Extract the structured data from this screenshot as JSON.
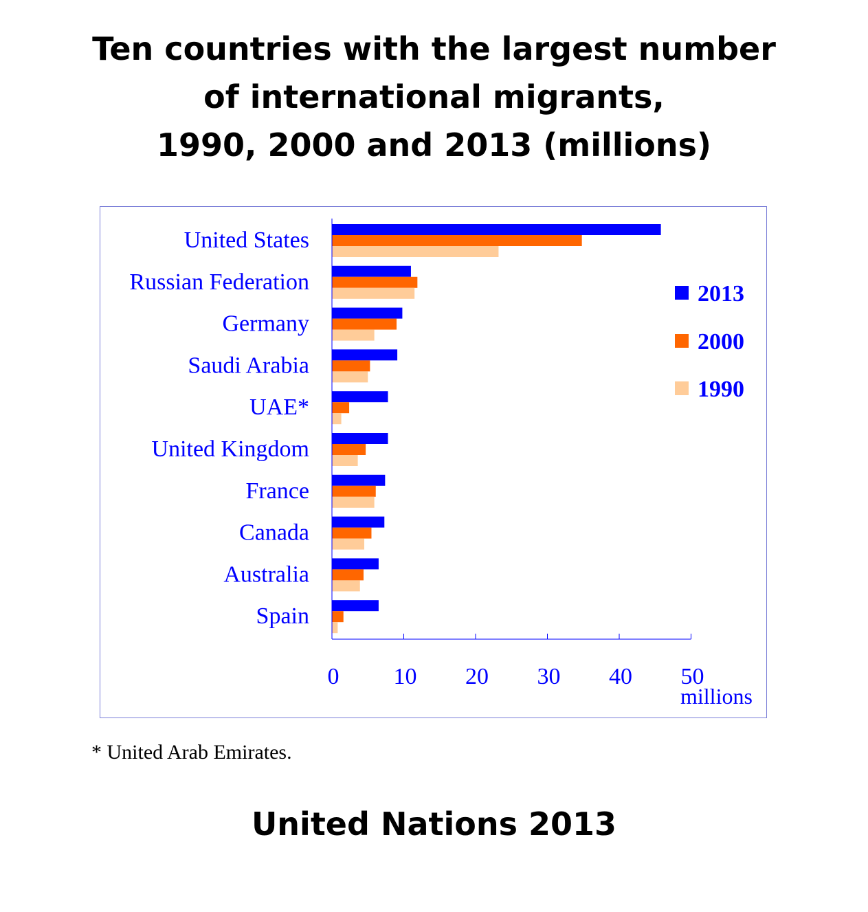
{
  "title_lines": [
    "Ten countries with the largest number",
    "of international migrants,",
    "1990, 2000 and 2013 (millions)"
  ],
  "footnote": "* United Arab Emirates.",
  "source": "United Nations 2013",
  "colors": {
    "label_text": "#0000ff",
    "frame": "#7b7fd8",
    "axis": "#0000ff"
  },
  "chart_data": {
    "type": "bar",
    "orientation": "horizontal",
    "categories": [
      "United States",
      "Russian Federation",
      "Germany",
      "Saudi Arabia",
      "UAE*",
      "United Kingdom",
      "France",
      "Canada",
      "Australia",
      "Spain"
    ],
    "series": [
      {
        "name": "2013",
        "color": "#0000ff",
        "values": [
          45.8,
          11.0,
          9.8,
          9.1,
          7.8,
          7.8,
          7.4,
          7.3,
          6.5,
          6.5
        ]
      },
      {
        "name": "2000",
        "color": "#ff6600",
        "values": [
          34.8,
          11.9,
          9.0,
          5.3,
          2.4,
          4.7,
          6.1,
          5.5,
          4.4,
          1.6
        ]
      },
      {
        "name": "1990",
        "color": "#ffcc99",
        "values": [
          23.2,
          11.5,
          5.9,
          5.0,
          1.3,
          3.6,
          5.9,
          4.5,
          3.9,
          0.8
        ]
      }
    ],
    "xticks": [
      "0",
      "10",
      "20",
      "30",
      "40",
      "50"
    ],
    "xunit": "millions",
    "xlim": [
      0,
      50
    ],
    "legend_position": "right",
    "grid": false
  }
}
